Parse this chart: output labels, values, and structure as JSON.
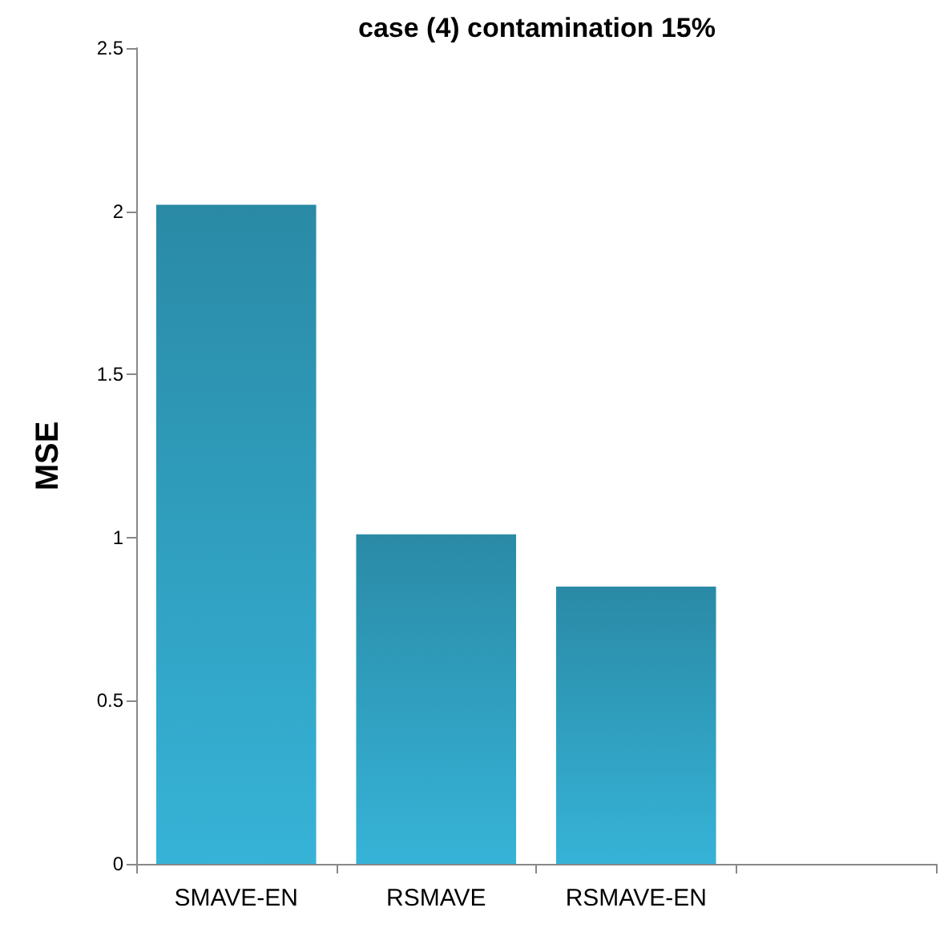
{
  "chart_data": {
    "type": "bar",
    "title": "case (4) contamination 15%",
    "ylabel": "MSE",
    "categories": [
      "SMAVE-EN",
      "RSMAVE",
      "RSMAVE-EN",
      null
    ],
    "values": [
      2.02,
      1.01,
      0.85,
      null
    ],
    "color": "#2a8aa6",
    "ylim": [
      0,
      2.5
    ],
    "yticks": [
      0,
      0.5,
      1,
      1.5,
      2,
      2.5
    ],
    "grid": false
  }
}
